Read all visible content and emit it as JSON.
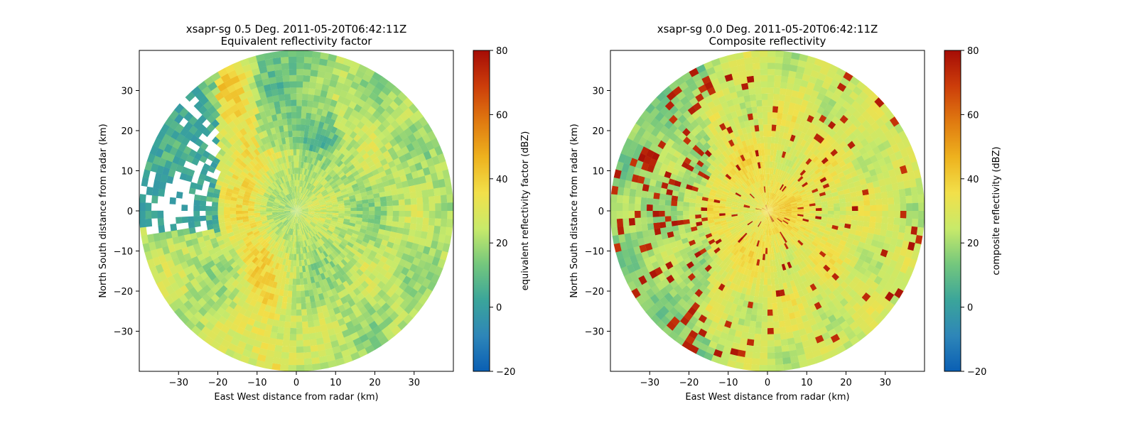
{
  "chart_data": [
    {
      "type": "heatmap",
      "subtype": "radar-ppi",
      "title": "xsapr-sg 0.5 Deg. 2011-05-20T06:42:11Z",
      "subtitle": "Equivalent reflectivity factor",
      "xlabel": "East West distance from radar (km)",
      "ylabel": "North South distance from radar (km)",
      "xlim": [
        -40,
        40
      ],
      "ylim": [
        -40,
        40
      ],
      "xticks": [
        -30,
        -20,
        -10,
        0,
        10,
        20,
        30
      ],
      "yticks": [
        -30,
        -20,
        -10,
        0,
        10,
        20,
        30
      ],
      "range_km": 40,
      "colorbar": {
        "label": "equivalent reflectivity factor (dBZ)",
        "min": -20,
        "max": 80,
        "ticks": [
          -20,
          0,
          20,
          40,
          60,
          80
        ]
      },
      "grid": false
    },
    {
      "type": "heatmap",
      "subtype": "radar-ppi",
      "title": "xsapr-sg 0.0 Deg. 2011-05-20T06:42:11Z",
      "subtitle": "Composite reflectivity",
      "xlabel": "East West distance from radar (km)",
      "ylabel": "North South distance from radar (km)",
      "xlim": [
        -40,
        40
      ],
      "ylim": [
        -40,
        40
      ],
      "xticks": [
        -30,
        -20,
        -10,
        0,
        10,
        20,
        30
      ],
      "yticks": [
        -30,
        -20,
        -10,
        0,
        10,
        20,
        30
      ],
      "range_km": 40,
      "colorbar": {
        "label": "composite reflectivity (dBZ)",
        "min": -20,
        "max": 80,
        "ticks": [
          -20,
          0,
          20,
          40,
          60,
          80
        ]
      },
      "grid": false
    }
  ],
  "colormap": {
    "name": "HomeyerRainbow",
    "stops": [
      "#0a5fb4",
      "#2e86b8",
      "#3ba59a",
      "#74c77d",
      "#c8ea6a",
      "#f2e04a",
      "#eeb21e",
      "#e07a10",
      "#cc3d0a",
      "#a50c06"
    ]
  }
}
